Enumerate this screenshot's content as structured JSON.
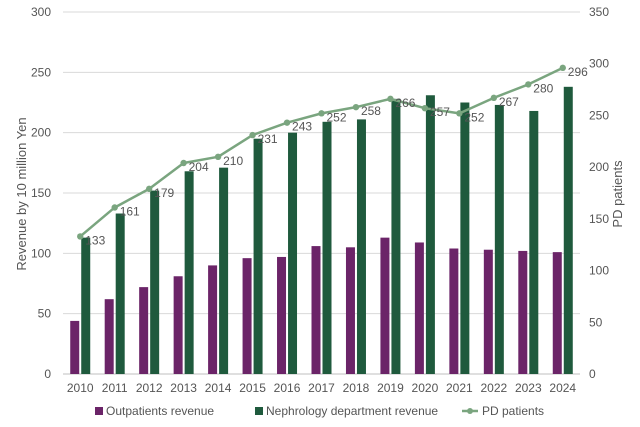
{
  "chart_data": {
    "type": "bar",
    "categories": [
      "2010",
      "2011",
      "2012",
      "2013",
      "2014",
      "2015",
      "2016",
      "2017",
      "2018",
      "2019",
      "2020",
      "2021",
      "2022",
      "2023",
      "2024"
    ],
    "ylabel": "Revenue by 10 million Yen",
    "ylabel_right": "PD patients",
    "ylim": [
      0,
      300
    ],
    "ylim_right": [
      0,
      350
    ],
    "yticks": [
      0,
      50,
      100,
      150,
      200,
      250,
      300
    ],
    "yticks_right": [
      0,
      50,
      100,
      150,
      200,
      250,
      300,
      350
    ],
    "grid": "horizontal",
    "legend_position": "bottom",
    "series": [
      {
        "name": "Outpatients revenue",
        "kind": "bar",
        "axis": "left",
        "color": "#6b2468",
        "values": [
          44,
          62,
          72,
          81,
          90,
          96,
          97,
          106,
          105,
          113,
          109,
          104,
          103,
          102,
          101
        ]
      },
      {
        "name": "Nephrology department revenue",
        "kind": "bar",
        "axis": "left",
        "color": "#1f5a3d",
        "values": [
          113,
          133,
          152,
          168,
          171,
          195,
          200,
          209,
          211,
          228,
          231,
          225,
          223,
          218,
          238
        ]
      },
      {
        "name": "PD patients",
        "kind": "line",
        "axis": "right",
        "color": "#7aa57f",
        "values": [
          133,
          161,
          179,
          204,
          210,
          231,
          243,
          252,
          258,
          266,
          257,
          252,
          267,
          280,
          296
        ],
        "labels": [
          "133",
          "161",
          "179",
          "204",
          "210",
          "231",
          "243",
          "252",
          "258",
          "266",
          "257",
          "252",
          "267",
          "280",
          "296"
        ]
      }
    ]
  }
}
